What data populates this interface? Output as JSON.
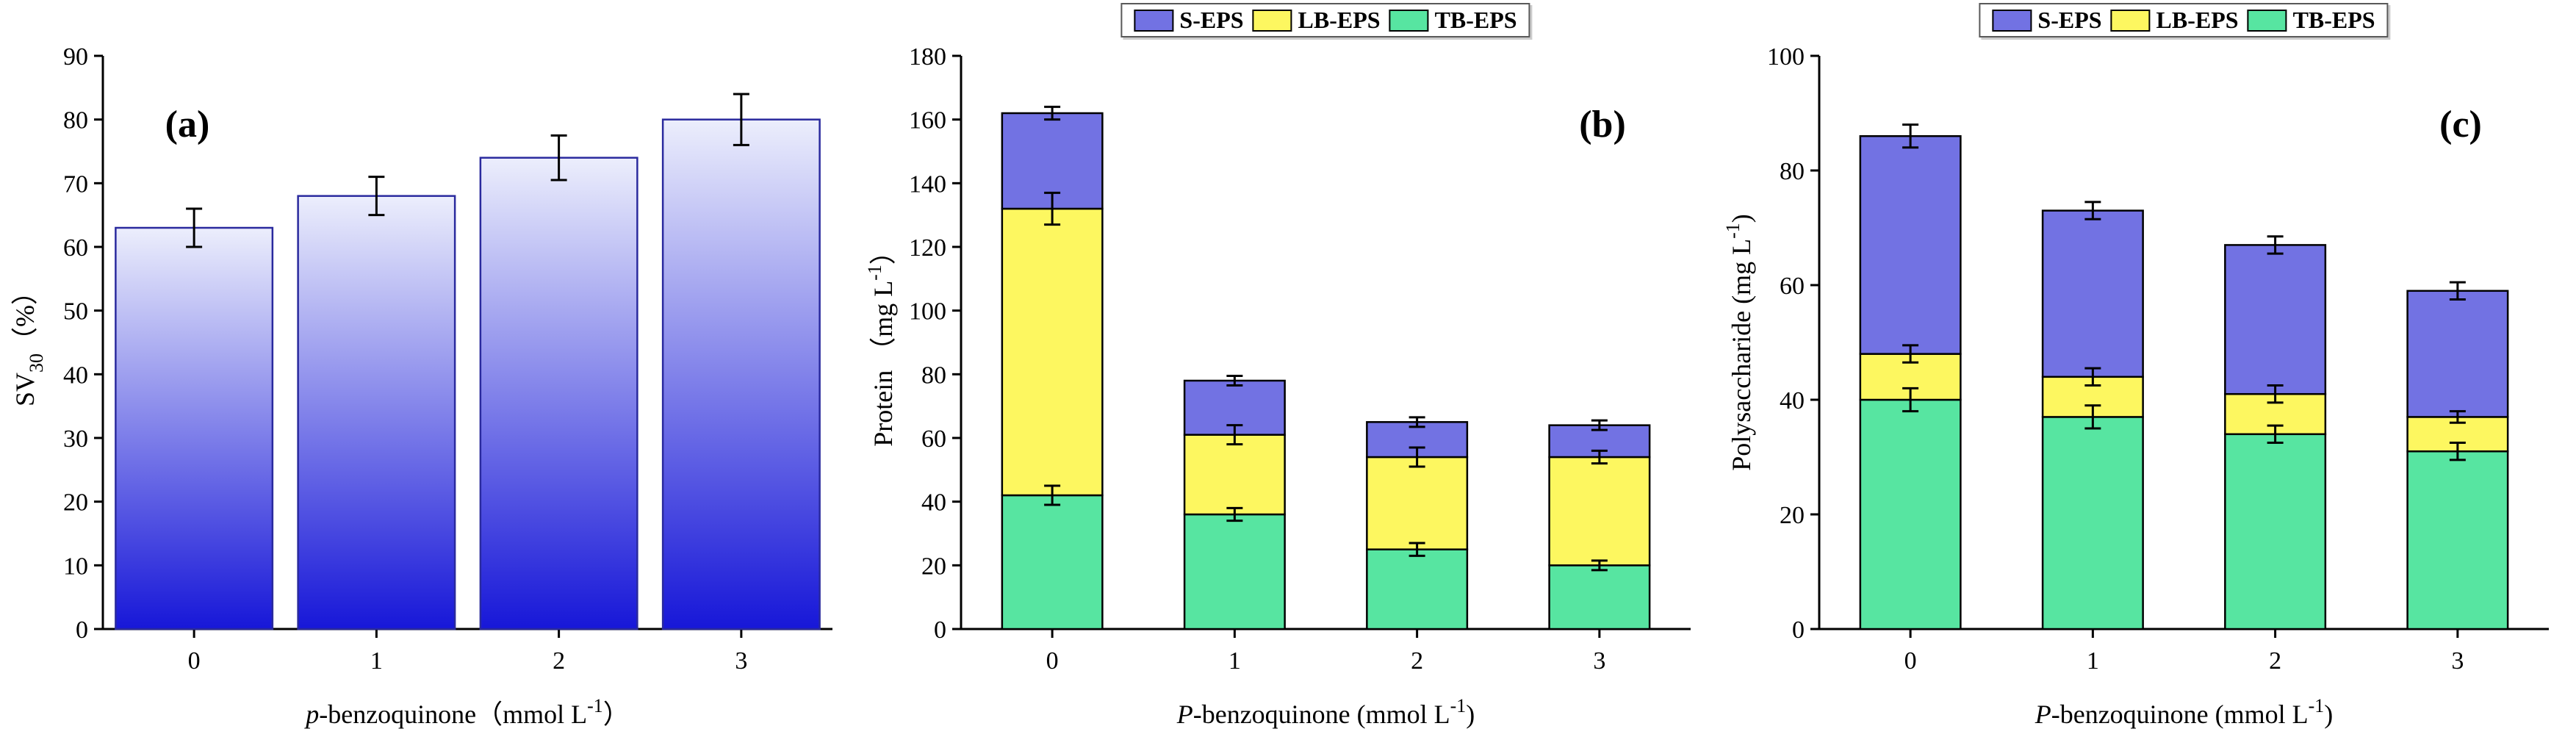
{
  "figure": {
    "background": "#ffffff",
    "description_labels": [
      "(a)",
      "(b)",
      "(c)"
    ]
  },
  "chart_data": [
    {
      "panel_label": "(a)",
      "panel_label_side": "left",
      "type": "bar",
      "categories": [
        "0",
        "1",
        "2",
        "3"
      ],
      "values": [
        63,
        68,
        74,
        80
      ],
      "errors": [
        3,
        3,
        3.5,
        4
      ],
      "bar_gradient": {
        "top": "#eceefc",
        "bottom": "#1717d8"
      },
      "bar_border": "#2a2a9e",
      "ylim": [
        0,
        90
      ],
      "ytick_step": 10,
      "bar_width_frac": 0.86,
      "legend": false,
      "grid": false,
      "ylabel": [
        {
          "text": "SV"
        },
        {
          "text": "30",
          "style": "sub"
        },
        {
          "text": "（%）"
        }
      ],
      "xlabel": [
        {
          "text": "p",
          "style": "italic"
        },
        {
          "text": "-benzoquinone（mmol L"
        },
        {
          "text": "-1",
          "style": "sup"
        },
        {
          "text": "）"
        }
      ]
    },
    {
      "panel_label": "(b)",
      "panel_label_side": "right",
      "type": "stacked-bar",
      "categories": [
        "0",
        "1",
        "2",
        "3"
      ],
      "series": [
        {
          "name": "TB-EPS",
          "color": "#57e5a1",
          "values": [
            42,
            36,
            25,
            20
          ],
          "errors": [
            3,
            2,
            2,
            1.5
          ]
        },
        {
          "name": "LB-EPS",
          "color": "#fdf760",
          "values": [
            90,
            25,
            29,
            34
          ],
          "errors": [
            5,
            3,
            3,
            2
          ]
        },
        {
          "name": "S-EPS",
          "color": "#7272e3",
          "values": [
            30,
            17,
            11,
            10
          ],
          "errors": [
            2,
            1.5,
            1.5,
            1.5
          ]
        }
      ],
      "stack_totals": [
        162,
        78,
        65,
        64
      ],
      "ylim": [
        0,
        180
      ],
      "ytick_step": 20,
      "bar_width_frac": 0.55,
      "legend": true,
      "legend_position": "top-center",
      "grid": false,
      "ylabel": [
        {
          "text": "Protein （mg L"
        },
        {
          "text": "-1",
          "style": "sup"
        },
        {
          "text": "）"
        }
      ],
      "xlabel": [
        {
          "text": "P",
          "style": "italic"
        },
        {
          "text": "-benzoquinone (mmol L"
        },
        {
          "text": "-1",
          "style": "sup"
        },
        {
          "text": ")"
        }
      ]
    },
    {
      "panel_label": "(c)",
      "panel_label_side": "right",
      "type": "stacked-bar",
      "categories": [
        "0",
        "1",
        "2",
        "3"
      ],
      "series": [
        {
          "name": "TB-EPS",
          "color": "#57e5a1",
          "values": [
            40,
            37,
            34,
            31
          ],
          "errors": [
            2,
            2,
            1.5,
            1.5
          ]
        },
        {
          "name": "LB-EPS",
          "color": "#fdf760",
          "values": [
            8,
            7,
            7,
            6
          ],
          "errors": [
            1.5,
            1.5,
            1.5,
            1
          ]
        },
        {
          "name": "S-EPS",
          "color": "#7272e3",
          "values": [
            38,
            29,
            26,
            22
          ],
          "errors": [
            2,
            1.5,
            1.5,
            1.5
          ]
        }
      ],
      "stack_totals": [
        86,
        73,
        67,
        59
      ],
      "ylim": [
        0,
        100
      ],
      "ytick_step": 20,
      "bar_width_frac": 0.55,
      "legend": true,
      "legend_position": "top-center",
      "grid": false,
      "ylabel": [
        {
          "text": "Polysaccharide (mg L"
        },
        {
          "text": "-1",
          "style": "sup"
        },
        {
          "text": ")"
        }
      ],
      "xlabel": [
        {
          "text": "P",
          "style": "italic"
        },
        {
          "text": "-benzoquinone (mmol L"
        },
        {
          "text": "-1",
          "style": "sup"
        },
        {
          "text": ")"
        }
      ]
    }
  ]
}
